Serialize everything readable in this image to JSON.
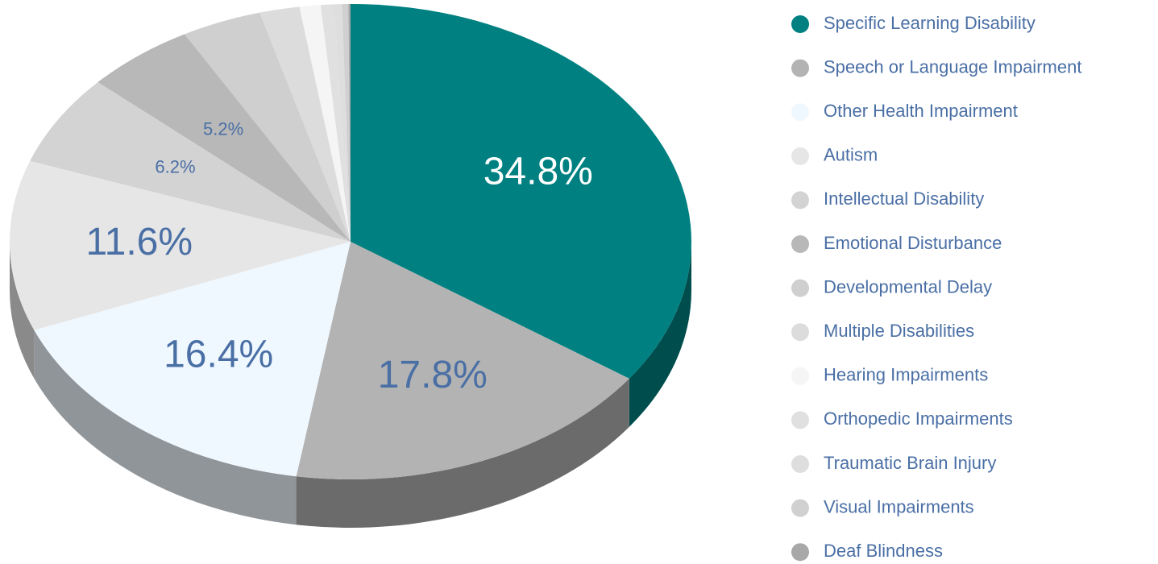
{
  "chart_data": {
    "type": "pie3d",
    "categories": [
      "Specific Learning Disability",
      "Speech or Language Impairment",
      "Other Health Impairment",
      "Autism",
      "Intellectual Disability",
      "Emotional Disturbance",
      "Developmental Delay",
      "Multiple Disabilities",
      "Hearing Impairments",
      "Orthopedic Impairments",
      "Traumatic Brain Injury",
      "Visual Impairments",
      "Deaf Blindness"
    ],
    "values": [
      34.8,
      17.8,
      16.4,
      11.6,
      6.2,
      5.2,
      3.8,
      1.9,
      1.0,
      0.6,
      0.4,
      0.3,
      0.1
    ],
    "value_labels": [
      "34.8%",
      "17.8%",
      "16.4%",
      "11.6%",
      "6.2%",
      "5.2%",
      null,
      null,
      null,
      null,
      null,
      null,
      null
    ],
    "colors": [
      "#008080",
      "#b3b3b3",
      "#f0f8ff",
      "#e6e6e6",
      "#d3d3d3",
      "#b8b8b8",
      "#cfcfcf",
      "#dcdcdc",
      "#f5f5f5",
      "#e0e0e0",
      "#dedede",
      "#d0d0d0",
      "#a8a8a8"
    ],
    "legend": "right"
  }
}
